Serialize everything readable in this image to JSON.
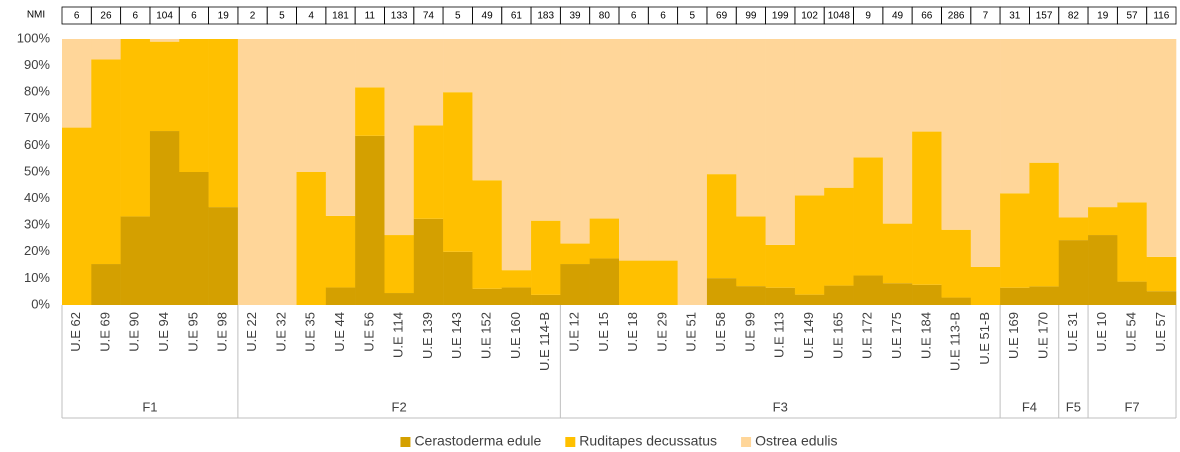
{
  "chart_data": {
    "type": "bar",
    "stacked": true,
    "nmi_label": "NMI",
    "groups": [
      {
        "name": "F1",
        "categories": [
          "U.E 62",
          "U.E 69",
          "U.E 90",
          "U.E 94",
          "U.E 95",
          "U.E 98"
        ],
        "nmi": [
          6,
          26,
          6,
          104,
          6,
          19
        ]
      },
      {
        "name": "F2",
        "categories": [
          "U.E 22",
          "U.E 32",
          "U.E 35",
          "U.E 44",
          "U.E 56",
          "U.E 114",
          "U.E 139",
          "U.E 143",
          "U.E 152",
          "U.E 160",
          "U.E 114-B"
        ],
        "nmi": [
          2,
          5,
          4,
          181,
          11,
          133,
          74,
          5,
          49,
          61,
          183
        ]
      },
      {
        "name": "F3",
        "categories": [
          "U.E 12",
          "U.E 15",
          "U.E 18",
          "U.E 29",
          "U.E 51",
          "U.E 58",
          "U.E 99",
          "U.E 113",
          "U.E 149",
          "U.E 165",
          "U.E 172",
          "U.E 175",
          "U.E 184",
          "U.E 113-B",
          "U.E 51-B"
        ],
        "nmi": [
          39,
          80,
          6,
          6,
          5,
          69,
          99,
          199,
          102,
          1048,
          9,
          49,
          66,
          286,
          7
        ]
      },
      {
        "name": "F4",
        "categories": [
          "U.E 169",
          "U.E 170"
        ],
        "nmi": [
          31,
          157
        ]
      },
      {
        "name": "F5",
        "categories": [
          "U.E 31"
        ],
        "nmi": [
          82
        ]
      },
      {
        "name": "F7",
        "categories": [
          "U.E 10",
          "U.E 54",
          "U.E 57"
        ],
        "nmi": [
          19,
          57,
          116
        ]
      }
    ],
    "series": [
      {
        "name": "Cerastoderma edule",
        "color": "#d4a000",
        "values": [
          0,
          15.4,
          33.3,
          65.4,
          50,
          36.8,
          0,
          0,
          0,
          6.6,
          63.6,
          4.5,
          32.4,
          20,
          6.1,
          6.6,
          3.8,
          15.4,
          17.5,
          0,
          0,
          0,
          10.1,
          7.1,
          6.5,
          3.9,
          7.3,
          11.1,
          8.2,
          7.6,
          2.8,
          0,
          6.5,
          7,
          24.4,
          26.3,
          8.8,
          5.2
        ]
      },
      {
        "name": "Ruditapes decussatus",
        "color": "#ffc000",
        "values": [
          66.7,
          76.9,
          66.7,
          33.6,
          50,
          63.2,
          0,
          0,
          50,
          26.9,
          18.2,
          21.8,
          35.1,
          60,
          40.8,
          6.5,
          27.9,
          7.7,
          15,
          16.7,
          16.7,
          0,
          39.1,
          26.2,
          16.1,
          37.3,
          36.8,
          44.4,
          22.4,
          57.6,
          25.5,
          14.3,
          35.5,
          46.5,
          8.5,
          10.5,
          29.8,
          12.9
        ]
      },
      {
        "name": "Ostrea edulis",
        "color": "#ffd699",
        "values": [
          33.3,
          7.7,
          0,
          1,
          0,
          0,
          100,
          100,
          50,
          66.5,
          18.2,
          73.7,
          32.5,
          20,
          53.1,
          86.9,
          68.3,
          76.9,
          67.5,
          83.3,
          83.3,
          100,
          50.8,
          66.7,
          77.4,
          58.8,
          55.9,
          44.5,
          69.4,
          34.8,
          71.7,
          85.7,
          58,
          46.5,
          67.1,
          63.2,
          61.4,
          81.9
        ]
      }
    ],
    "ylim": [
      0,
      100
    ],
    "yticks": [
      {
        "value": 0,
        "label": "0%"
      },
      {
        "value": 10,
        "label": "10%"
      },
      {
        "value": 20,
        "label": "20%"
      },
      {
        "value": 30,
        "label": "30%"
      },
      {
        "value": 40,
        "label": "40%"
      },
      {
        "value": 50,
        "label": "50%"
      },
      {
        "value": 60,
        "label": "60%"
      },
      {
        "value": 70,
        "label": "70%"
      },
      {
        "value": 80,
        "label": "80%"
      },
      {
        "value": 90,
        "label": "90%"
      },
      {
        "value": 100,
        "label": "100%"
      }
    ],
    "legend": "bottom"
  }
}
